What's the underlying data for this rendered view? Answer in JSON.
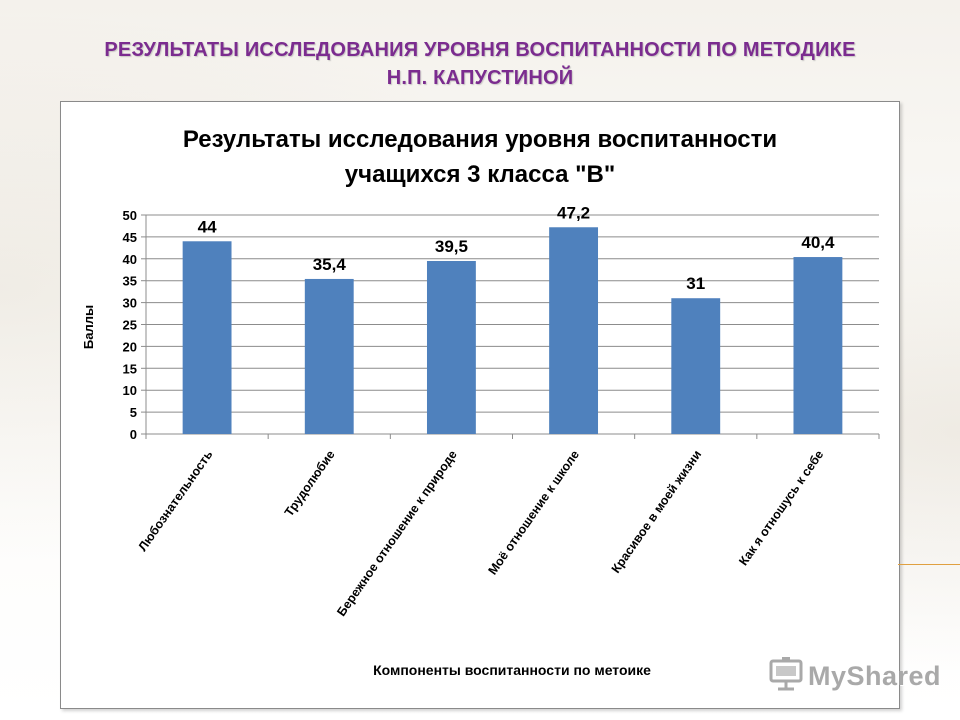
{
  "slide": {
    "title_line1": "РЕЗУЛЬТАТЫ ИССЛЕДОВАНИЯ УРОВНЯ ВОСПИТАННОСТИ ПО МЕТОДИКЕ",
    "title_line2": "Н.П. КАПУСТИНОЙ",
    "title_color": "#7b2c8f"
  },
  "watermark": {
    "text": "MyShared",
    "icon": "projector-board-icon"
  },
  "chart_data": {
    "type": "bar",
    "title": "Результаты исследования уровня воспитанности учащихся 3 класса \"В\"",
    "title_line1": "Результаты исследования уровня воспитанности",
    "title_line2": "учащихся 3 класса \"В\"",
    "xlabel": "Компоненты воспитанности по метоике",
    "ylabel": "Баллы",
    "ylim": [
      0,
      50
    ],
    "yticks": [
      0,
      5,
      10,
      15,
      20,
      25,
      30,
      35,
      40,
      45,
      50
    ],
    "grid": true,
    "bar_color": "#4f81bd",
    "categories": [
      "Любознательность",
      "Трудолюбие",
      "Бережное отношение к природе",
      "Моё отношение к школе",
      "Красивое в моей жизни",
      "Как я отношусь к себе"
    ],
    "values": [
      44,
      35.4,
      39.5,
      47.2,
      31,
      40.4
    ],
    "value_labels": [
      "44",
      "35,4",
      "39,5",
      "47,2",
      "31",
      "40,4"
    ]
  }
}
